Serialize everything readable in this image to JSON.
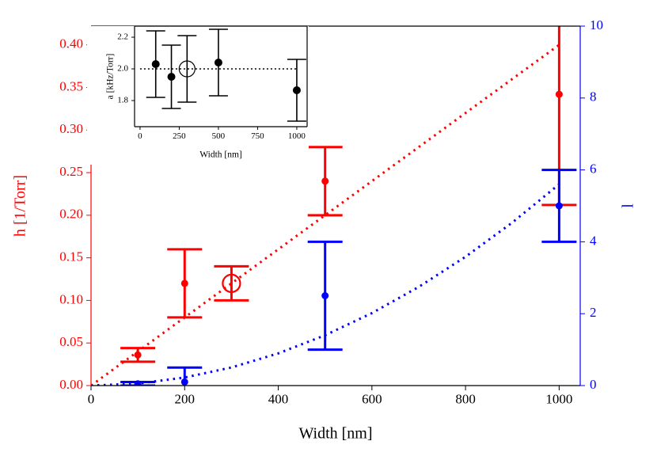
{
  "chart_data": [
    {
      "type": "scatter",
      "xlabel": "Width [nm]",
      "ylabel": "h [1/Torr]",
      "y2label": "l",
      "y_color": "#ff0000",
      "y2_color": "#0000ff",
      "xlim": [
        0,
        1045
      ],
      "ylim": [
        0,
        0.422
      ],
      "y2lim": [
        0,
        10
      ],
      "xticks": [
        0,
        200,
        400,
        600,
        800,
        1000
      ],
      "yticks": [
        {
          "value": 0,
          "label": "0.00"
        },
        {
          "value": 0.05,
          "label": "0.05"
        },
        {
          "value": 0.1,
          "label": "0.10"
        },
        {
          "value": 0.15,
          "label": "0.15"
        },
        {
          "value": 0.2,
          "label": "0.20"
        },
        {
          "value": 0.25,
          "label": "0.25"
        },
        {
          "value": 0.3,
          "label": "0.30"
        },
        {
          "value": 0.35,
          "label": "0.35"
        },
        {
          "value": 0.4,
          "label": "0.40"
        }
      ],
      "y2ticks": [
        0,
        2,
        4,
        6,
        8,
        10
      ],
      "series": [
        {
          "type": "line",
          "style": "dotted",
          "color": "#ff0000",
          "x": [
            0,
            1000
          ],
          "values": [
            0,
            0.4
          ]
        },
        {
          "type": "line",
          "style": "dotted",
          "color": "#0000ff",
          "axis": "y2",
          "x": [
            0,
            100,
            200,
            300,
            400,
            500,
            600,
            700,
            800,
            900,
            1000
          ],
          "values": [
            0,
            0.056,
            0.224,
            0.504,
            0.896,
            1.4,
            2.016,
            2.744,
            3.584,
            4.536,
            5.6
          ]
        },
        {
          "type": "errorbar",
          "color": "#ff0000",
          "x": [
            100,
            200,
            300,
            500,
            1000
          ],
          "values": [
            0.036,
            0.12,
            0.12,
            0.24,
            0.342
          ],
          "errors": [
            0.008,
            0.04,
            0.02,
            0.04,
            0.13
          ],
          "marker_styles": [
            "filled",
            "filled",
            "open",
            "filled",
            "filled"
          ]
        },
        {
          "type": "errorbar",
          "color": "#0000ff",
          "axis": "y2",
          "x": [
            100,
            200,
            500,
            1000
          ],
          "values": [
            0.05,
            0.1,
            2.5,
            5
          ],
          "errors": [
            0.05,
            0.4,
            1.5,
            1
          ],
          "marker_styles": [
            "filled",
            "filled",
            "filled",
            "filled"
          ]
        }
      ]
    },
    {
      "type": "scatter",
      "xlabel": "Width [nm]",
      "ylabel": "a [kHz/Torr]",
      "xlim": [
        -35,
        1066
      ],
      "ylim": [
        1.635,
        2.27
      ],
      "xticks": [
        0,
        250,
        500,
        750,
        1000
      ],
      "yticks": [
        {
          "value": 1.8,
          "label": "1.8"
        },
        {
          "value": 2.0,
          "label": "2.0"
        },
        {
          "value": 2.2,
          "label": "2.2"
        }
      ],
      "series": [
        {
          "type": "line",
          "style": "dotted",
          "color": "#000000",
          "x": [
            0,
            1000
          ],
          "values": [
            2.0,
            2.0
          ]
        },
        {
          "type": "errorbar",
          "color": "#000000",
          "x": [
            100,
            200,
            300,
            500,
            1000
          ],
          "values": [
            2.03,
            1.95,
            2.0,
            2.04,
            1.865
          ],
          "errors": [
            0.21,
            0.2,
            0.21,
            0.21,
            0.195
          ],
          "marker_styles": [
            "filled",
            "filled",
            "open",
            "filled",
            "filled"
          ]
        }
      ]
    }
  ]
}
